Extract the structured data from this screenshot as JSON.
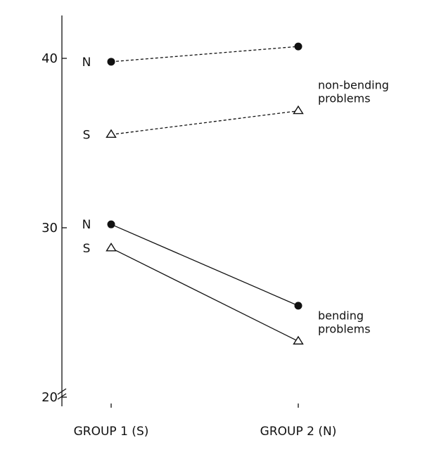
{
  "chart_data": {
    "type": "line",
    "title": "",
    "xlabel": "",
    "ylabel": "",
    "categories": [
      "GROUP 1 (S)",
      "GROUP 2 (N)"
    ],
    "ylim": [
      20,
      42.5
    ],
    "y_ticks": [
      "20",
      "30",
      "40"
    ],
    "axis_break": true,
    "grid": false,
    "series": [
      {
        "name": "N",
        "group": "non-bending problems",
        "marker": "filled-circle",
        "line": "dashed",
        "values": [
          39.8,
          40.7
        ]
      },
      {
        "name": "S",
        "group": "non-bending problems",
        "marker": "open-triangle",
        "line": "dashed",
        "values": [
          35.5,
          36.9
        ]
      },
      {
        "name": "N",
        "group": "bending problems",
        "marker": "filled-circle",
        "line": "solid",
        "values": [
          30.2,
          25.4
        ]
      },
      {
        "name": "S",
        "group": "bending problems",
        "marker": "open-triangle",
        "line": "solid",
        "values": [
          28.8,
          23.3
        ]
      }
    ],
    "annotations": [
      {
        "lines": [
          "non-bending",
          "problems"
        ],
        "near_series": 1
      },
      {
        "lines": [
          "bending",
          "problems"
        ],
        "near_series": 3
      }
    ]
  }
}
